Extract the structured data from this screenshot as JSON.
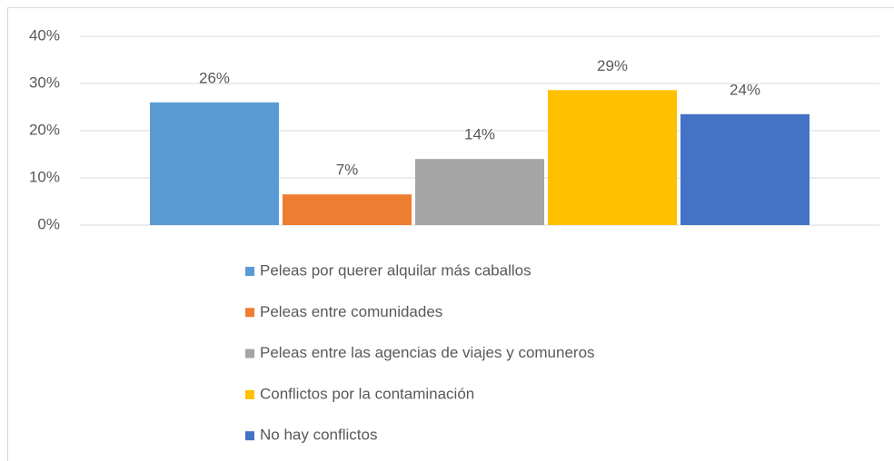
{
  "chart_data": {
    "type": "bar",
    "categories": [
      null
    ],
    "series": [
      {
        "name": "Peleas por querer alquilar más caballos",
        "color": "#5b9bd5",
        "values": [
          26
        ],
        "value_labels": [
          "26%"
        ]
      },
      {
        "name": "Peleas entre comunidades",
        "color": "#ed7d31",
        "values": [
          6.5
        ],
        "value_labels": [
          "7%"
        ]
      },
      {
        "name": "Peleas entre las agencias de viajes y comuneros",
        "color": "#a5a5a5",
        "values": [
          14
        ],
        "value_labels": [
          "14%"
        ]
      },
      {
        "name": "Conflictos por la contaminación",
        "color": "#ffc000",
        "values": [
          28.6
        ],
        "value_labels": [
          "29%"
        ]
      },
      {
        "name": "No hay conflictos",
        "color": "#4472c4",
        "values": [
          23.5
        ],
        "value_labels": [
          "24%"
        ]
      }
    ],
    "ylim": [
      0,
      40
    ],
    "yticks": [
      {
        "value": 0,
        "label": "0%"
      },
      {
        "value": 10,
        "label": "10%"
      },
      {
        "value": 20,
        "label": "20%"
      },
      {
        "value": 30,
        "label": "30%"
      },
      {
        "value": 40,
        "label": "40%"
      }
    ],
    "grid": true,
    "legend": "bottom"
  }
}
